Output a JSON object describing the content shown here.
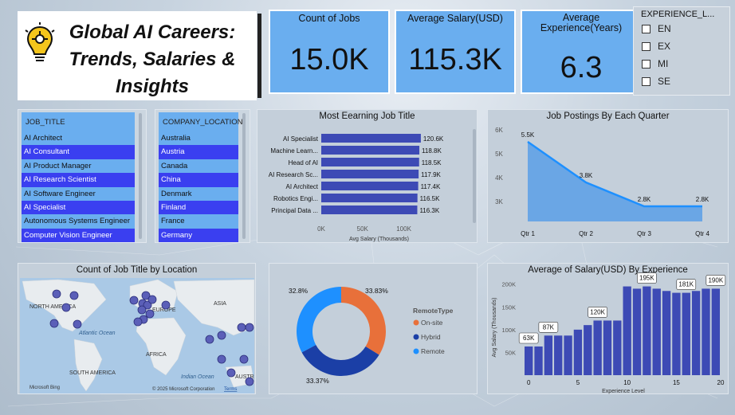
{
  "title": "Global AI Careers: Trends, Salaries & Insights",
  "title_lines": [
    "Global AI Careers:",
    "Trends, Salaries &",
    "Insights"
  ],
  "kpis": [
    {
      "label": "Count of Jobs",
      "value": "15.0K"
    },
    {
      "label": "Average Salary(USD)",
      "value": "115.3K"
    },
    {
      "label": "Average Experience(Years)",
      "value": "6.3"
    }
  ],
  "experience_slicer": {
    "header": "EXPERIENCE_L...",
    "items": [
      "EN",
      "EX",
      "MI",
      "SE"
    ]
  },
  "job_title_slicer": {
    "header": "JOB_TITLE",
    "items": [
      {
        "label": "AI Architect",
        "selected": false
      },
      {
        "label": "AI Consultant",
        "selected": true
      },
      {
        "label": "AI Product Manager",
        "selected": false
      },
      {
        "label": "AI Research Scientist",
        "selected": true
      },
      {
        "label": "AI Software Engineer",
        "selected": false
      },
      {
        "label": "AI Specialist",
        "selected": true
      },
      {
        "label": "Autonomous Systems Engineer",
        "selected": false
      },
      {
        "label": "Computer Vision Engineer",
        "selected": true
      }
    ]
  },
  "company_location_slicer": {
    "header": "COMPANY_LOCATION",
    "items": [
      {
        "label": "Australia",
        "selected": false
      },
      {
        "label": "Austria",
        "selected": true
      },
      {
        "label": "Canada",
        "selected": false
      },
      {
        "label": "China",
        "selected": true
      },
      {
        "label": "Denmark",
        "selected": false
      },
      {
        "label": "Finland",
        "selected": true
      },
      {
        "label": "France",
        "selected": false
      },
      {
        "label": "Germany",
        "selected": true
      }
    ]
  },
  "colors": {
    "kpi": "#6aaeef",
    "bar": "#3d4ab5",
    "line": "#1e90ff",
    "onsite": "#e8703a",
    "hybrid": "#1b3fa6",
    "remote": "#1e90ff",
    "selected": "#3a3ff0"
  },
  "map": {
    "title": "Count of Job Title by Location",
    "labels": [
      "NORTH AMERICA",
      "EUROPE",
      "ASIA",
      "Atlantic Ocean",
      "AFRICA",
      "Indian Ocean",
      "SOUTH AMERICA",
      "AUSTR"
    ],
    "copyright": "© 2025 Microsoft Corporation",
    "terms": "Terms",
    "bing": "Microsoft Bing"
  },
  "chart_data": [
    {
      "type": "bar",
      "title": "Most Eearning Job Title",
      "categories": [
        "AI Specialist",
        "Machine Learn...",
        "Head of AI",
        "AI Research Sc...",
        "AI Architect",
        "Robotics Engi...",
        "Principal Data ..."
      ],
      "values": [
        120.6,
        118.8,
        118.5,
        117.9,
        117.4,
        116.5,
        116.3
      ],
      "data_labels": [
        "120.6K",
        "118.8K",
        "118.5K",
        "117.9K",
        "117.4K",
        "116.5K",
        "116.3K"
      ],
      "xlabel": "Avg Salary (Thousands)",
      "xticks": [
        "0K",
        "50K",
        "100K"
      ],
      "xlim": [
        0,
        140
      ]
    },
    {
      "type": "area",
      "title": "Job Postings By Each Quarter",
      "categories": [
        "Qtr 1",
        "Qtr 2",
        "Qtr 3",
        "Qtr 4"
      ],
      "values": [
        5.5,
        3.8,
        2.8,
        2.8
      ],
      "data_labels": [
        "5.5K",
        "3.8K",
        "2.8K",
        "2.8K"
      ],
      "yticks": [
        "6K",
        "5K",
        "4K",
        "3K"
      ],
      "ylim": [
        2.5,
        6
      ]
    },
    {
      "type": "pie",
      "legend_title": "RemoteType",
      "categories": [
        "On-site",
        "Hybrid",
        "Remote"
      ],
      "values": [
        33.83,
        33.37,
        32.8
      ],
      "data_labels": [
        "33.83%",
        "33.37%",
        "32.8%"
      ]
    },
    {
      "type": "bar",
      "title": "Average of Salary(USD) By Experience",
      "xlabel": "Experience Level",
      "ylabel": "Avg Salary (Thousands)",
      "x": [
        0,
        1,
        2,
        3,
        4,
        5,
        6,
        7,
        8,
        9,
        10,
        11,
        12,
        13,
        14,
        15,
        16,
        17,
        18,
        19
      ],
      "values": [
        63,
        63,
        87,
        87,
        87,
        100,
        110,
        120,
        120,
        120,
        195,
        190,
        195,
        190,
        185,
        181,
        181,
        185,
        190,
        190
      ],
      "data_labels": [
        {
          "i": 0,
          "text": "63K"
        },
        {
          "i": 2,
          "text": "87K"
        },
        {
          "i": 7,
          "text": "120K"
        },
        {
          "i": 12,
          "text": "195K"
        },
        {
          "i": 16,
          "text": "181K"
        },
        {
          "i": 19,
          "text": "190K"
        }
      ],
      "yticks": [
        "200K",
        "150K",
        "100K",
        "50K"
      ],
      "xticks": [
        "0",
        "5",
        "10",
        "15",
        "20"
      ],
      "ylim": [
        0,
        210
      ]
    }
  ]
}
